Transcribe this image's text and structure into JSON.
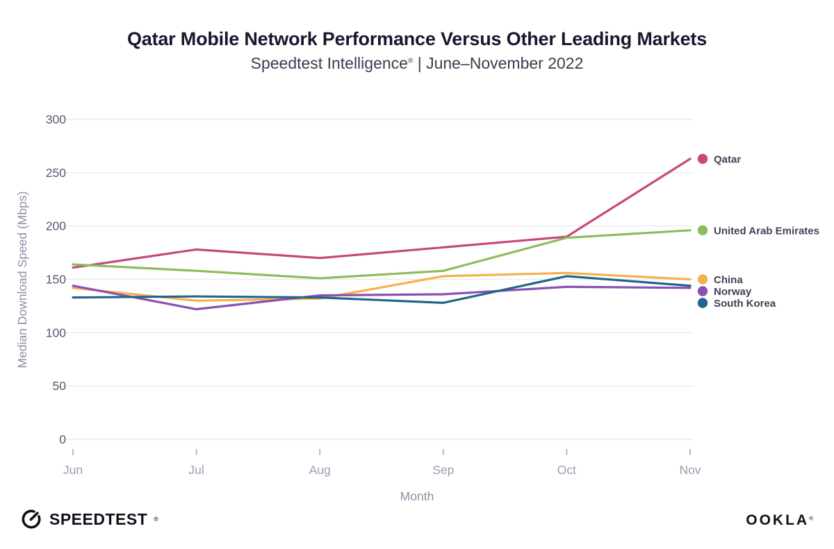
{
  "header": {
    "title": "Qatar Mobile Network Performance Versus Other Leading Markets",
    "subtitle_brand": "Speedtest Intelligence",
    "subtitle_reg": "®",
    "subtitle_rest": " | June–November 2022"
  },
  "chart_data": {
    "type": "line",
    "x": [
      "Jun",
      "Jul",
      "Aug",
      "Sep",
      "Oct",
      "Nov"
    ],
    "series": [
      {
        "name": "Qatar",
        "color": "#c6487c",
        "values": [
          161,
          178,
          170,
          180,
          190,
          263
        ]
      },
      {
        "name": "United Arab Emirates",
        "color": "#8cbd5a",
        "values": [
          164,
          158,
          151,
          158,
          189,
          196
        ]
      },
      {
        "name": "China",
        "color": "#f4b14e",
        "values": [
          142,
          130,
          132,
          153,
          156,
          150
        ]
      },
      {
        "name": "Norway",
        "color": "#8c4fb2",
        "values": [
          144,
          122,
          135,
          136,
          143,
          142
        ]
      },
      {
        "name": "South Korea",
        "color": "#20658c",
        "values": [
          133,
          134,
          133,
          128,
          153,
          144
        ]
      }
    ],
    "xlabel": "Month",
    "ylabel": "Median Download Speed (Mbps)",
    "ylim": [
      0,
      300
    ],
    "yticks": [
      0,
      50,
      100,
      150,
      200,
      250,
      300
    ],
    "grid": true,
    "legend_position": "right-of-line-endpoints"
  },
  "footer": {
    "speedtest_label": "SPEEDTEST",
    "speedtest_reg": "®",
    "ookla_label": "OOKLA",
    "ookla_reg": "®"
  }
}
